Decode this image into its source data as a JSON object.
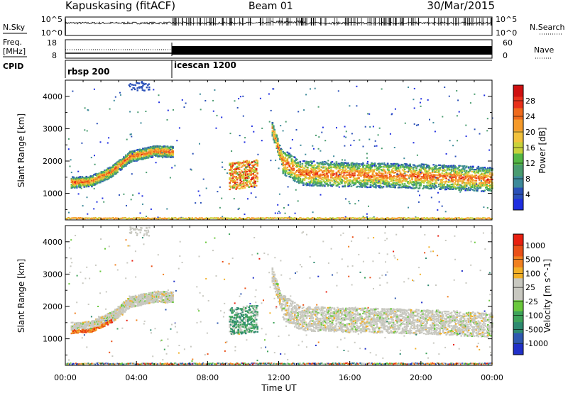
{
  "header": {
    "station": "Kapuskasing (fitACF)",
    "beam": "Beam 01",
    "date": "30/Mar/2015"
  },
  "top_panels": {
    "nsky_label": "N.Sky",
    "nsky_ticks": [
      "10^5",
      "10^0"
    ],
    "nsearch_label": "N.Search",
    "freq_label_1": "Freq.",
    "freq_label_2": "[MHz]",
    "freq_ticks": [
      "18",
      "8"
    ],
    "nave_ticks": [
      "60",
      "0"
    ],
    "nave_label": "Nave",
    "cpid_label": "CPID",
    "cpid_segments": [
      {
        "name": "rbsp 200",
        "start_h": 0,
        "end_h": 6
      },
      {
        "name": "icescan 1200",
        "start_h": 6,
        "end_h": 24
      }
    ]
  },
  "chart_data": [
    {
      "type": "heatmap",
      "panel": "power",
      "ylabel": "Slant Range [km]",
      "ylim": [
        180,
        4500
      ],
      "yticks": [
        "1000",
        "2000",
        "3000",
        "4000"
      ],
      "xlim_hours": [
        0,
        24
      ],
      "colorbar": {
        "label": "Power [dB]",
        "ticks": [
          "4",
          "8",
          "12",
          "16",
          "20",
          "24",
          "28"
        ],
        "colors": [
          "#1f2ee0",
          "#2a50b8",
          "#3d8a9a",
          "#4a9c70",
          "#55b845",
          "#c8d23a",
          "#f2c23c",
          "#f59a2a",
          "#ef6a1c",
          "#e8301a",
          "#cf1010"
        ]
      },
      "bands": [
        {
          "t": [
            0.3,
            1.4,
            2.6,
            3.6,
            5.0,
            6.0
          ],
          "r": [
            1360,
            1390,
            1700,
            2150,
            2330,
            2300
          ],
          "w": 170
        },
        {
          "t": [
            9.2,
            10.8
          ],
          "r": [
            1550,
            1650
          ],
          "w": 420
        },
        {
          "t": [
            11.6,
            12.2,
            13.2,
            16,
            20,
            24
          ],
          "r": [
            3000,
            2000,
            1650,
            1600,
            1550,
            1450
          ],
          "w": 380
        }
      ]
    },
    {
      "type": "heatmap",
      "panel": "velocity",
      "ylabel": "Slant Range [km]",
      "ylim": [
        180,
        4500
      ],
      "yticks": [
        "1000",
        "2000",
        "3000",
        "4000"
      ],
      "xlim_hours": [
        0,
        24
      ],
      "xticks": [
        "00:00",
        "04:00",
        "08:00",
        "12:00",
        "16:00",
        "20:00",
        "00:00"
      ],
      "xlabel": "Time UT",
      "colorbar": {
        "label": "Velocity [m s^-1]",
        "ticks": [
          "1000",
          "500",
          "100",
          "25",
          "-25",
          "-100",
          "-500",
          "-1000"
        ],
        "colors": [
          "#2030c8",
          "#2e58b0",
          "#2e8a70",
          "#3ea35a",
          "#6ac83c",
          "#c8c8c0",
          "#c8c8c0",
          "#f2b028",
          "#f08020",
          "#ea5018",
          "#e82010"
        ]
      }
    }
  ]
}
